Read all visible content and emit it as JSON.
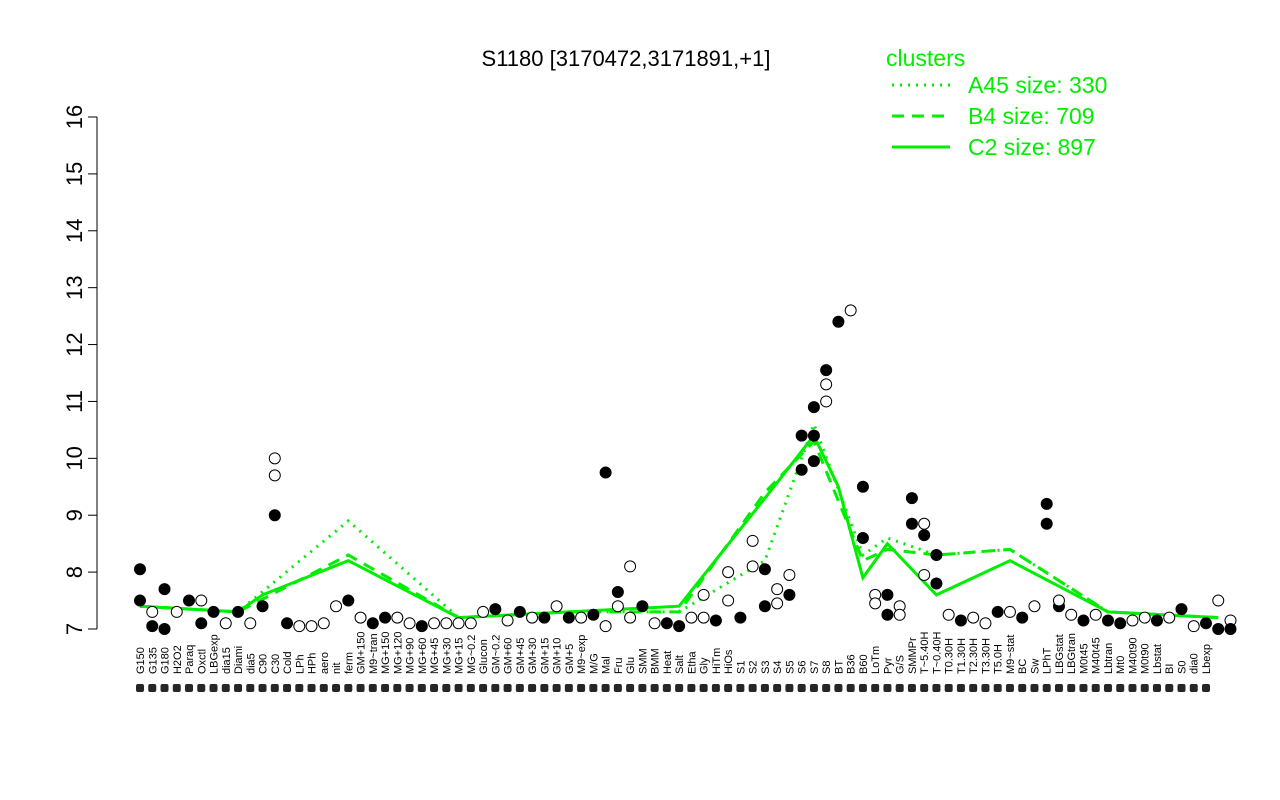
{
  "chart_data": {
    "type": "line",
    "title": "S1180 [3170472,3171891,+1]",
    "xlabel": "",
    "ylabel": "",
    "ylim": [
      7,
      16
    ],
    "yticks": [
      7,
      8,
      9,
      10,
      11,
      12,
      13,
      14,
      15,
      16
    ],
    "x_tick_labels": [
      "G150",
      "G135",
      "G180",
      "H2O2",
      "Paraq",
      "Oxctl",
      "LBGexp",
      "dia15",
      "Diami",
      "dia5",
      "C90",
      "C30",
      "Cold",
      "LPh",
      "HPh",
      "aero",
      "nit",
      "ferm",
      "GM+150",
      "M9~tran",
      "MG+150",
      "MG+120",
      "MG+90",
      "MG+60",
      "MG+45",
      "MG+30",
      "MG+15",
      "MG~0.2",
      "Glucon",
      "GM~0.2",
      "GM+60",
      "GM+45",
      "GM+30",
      "GM+15",
      "GM+10",
      "GM+5",
      "M9~exp",
      "M/G",
      "Mal",
      "Fru",
      "Glu",
      "SMM",
      "BMM",
      "Heat",
      "Salt",
      "Etha",
      "Gly",
      "HiTm",
      "HiOs",
      "S1",
      "S2",
      "S3",
      "S4",
      "S5",
      "S6",
      "S7",
      "S8",
      "BT",
      "B36",
      "B60",
      "LoTm",
      "Pyr",
      "G/S",
      "SMMPr",
      "T~5.40H",
      "T~0.40H",
      "T0.30H",
      "T1.30H",
      "T2.30H",
      "T3.30H",
      "T5.0H",
      "M9~stat",
      "BC",
      "Sw",
      "LPhT",
      "LBGstat",
      "LBGtran",
      "M0t45",
      "M40t45",
      "Lbtran",
      "Mt0",
      "M40t90",
      "M0t90",
      "Lbstat",
      "BI",
      "S0",
      "dia0",
      "Lbexp"
    ],
    "series": [
      {
        "name": "A45 size: 330",
        "style": "dotted",
        "x": [
          1,
          9,
          18,
          27,
          36,
          45,
          52,
          56,
          60,
          62,
          66,
          72,
          80,
          89
        ],
        "y": [
          7.4,
          7.3,
          8.9,
          7.2,
          7.3,
          7.3,
          8.2,
          10.6,
          8.3,
          8.6,
          8.3,
          8.4,
          7.3,
          7.2
        ]
      },
      {
        "name": "B4 size: 709",
        "style": "dashed",
        "x": [
          1,
          9,
          18,
          27,
          36,
          45,
          52,
          56,
          60,
          62,
          66,
          72,
          80,
          89
        ],
        "y": [
          7.4,
          7.3,
          8.3,
          7.2,
          7.3,
          7.3,
          9.4,
          10.3,
          8.2,
          8.4,
          8.3,
          8.4,
          7.3,
          7.2
        ]
      },
      {
        "name": "C2 size: 897",
        "style": "solid",
        "x": [
          1,
          9,
          11,
          18,
          27,
          36,
          45,
          52,
          56,
          58,
          60,
          62,
          66,
          72,
          80,
          89
        ],
        "y": [
          7.4,
          7.3,
          7.6,
          8.2,
          7.2,
          7.3,
          7.4,
          9.3,
          10.4,
          9.5,
          7.9,
          8.5,
          7.6,
          8.2,
          7.3,
          7.2
        ]
      }
    ],
    "points": [
      {
        "x": 1,
        "y": 7.5,
        "filled": true
      },
      {
        "x": 1,
        "y": 8.05,
        "filled": true
      },
      {
        "x": 2,
        "y": 7.3,
        "filled": false
      },
      {
        "x": 2,
        "y": 7.05,
        "filled": true
      },
      {
        "x": 3,
        "y": 7.7,
        "filled": true
      },
      {
        "x": 3,
        "y": 7.0,
        "filled": true
      },
      {
        "x": 4,
        "y": 7.3,
        "filled": false
      },
      {
        "x": 5,
        "y": 7.5,
        "filled": true
      },
      {
        "x": 6,
        "y": 7.5,
        "filled": false
      },
      {
        "x": 6,
        "y": 7.1,
        "filled": true
      },
      {
        "x": 7,
        "y": 7.3,
        "filled": true
      },
      {
        "x": 8,
        "y": 7.1,
        "filled": false
      },
      {
        "x": 9,
        "y": 7.3,
        "filled": true
      },
      {
        "x": 10,
        "y": 7.1,
        "filled": false
      },
      {
        "x": 11,
        "y": 7.4,
        "filled": true
      },
      {
        "x": 12,
        "y": 9.0,
        "filled": true
      },
      {
        "x": 12,
        "y": 9.7,
        "filled": false
      },
      {
        "x": 12,
        "y": 10.0,
        "filled": false
      },
      {
        "x": 13,
        "y": 7.1,
        "filled": true
      },
      {
        "x": 14,
        "y": 7.05,
        "filled": false
      },
      {
        "x": 15,
        "y": 7.05,
        "filled": false
      },
      {
        "x": 16,
        "y": 7.1,
        "filled": false
      },
      {
        "x": 17,
        "y": 7.4,
        "filled": false
      },
      {
        "x": 18,
        "y": 7.5,
        "filled": true
      },
      {
        "x": 19,
        "y": 7.2,
        "filled": false
      },
      {
        "x": 20,
        "y": 7.1,
        "filled": true
      },
      {
        "x": 21,
        "y": 7.2,
        "filled": true
      },
      {
        "x": 22,
        "y": 7.2,
        "filled": false
      },
      {
        "x": 23,
        "y": 7.1,
        "filled": false
      },
      {
        "x": 24,
        "y": 7.05,
        "filled": true
      },
      {
        "x": 25,
        "y": 7.1,
        "filled": false
      },
      {
        "x": 26,
        "y": 7.1,
        "filled": false
      },
      {
        "x": 27,
        "y": 7.1,
        "filled": false
      },
      {
        "x": 28,
        "y": 7.1,
        "filled": false
      },
      {
        "x": 29,
        "y": 7.3,
        "filled": false
      },
      {
        "x": 30,
        "y": 7.35,
        "filled": true
      },
      {
        "x": 31,
        "y": 7.15,
        "filled": false
      },
      {
        "x": 32,
        "y": 7.3,
        "filled": true
      },
      {
        "x": 33,
        "y": 7.2,
        "filled": false
      },
      {
        "x": 34,
        "y": 7.2,
        "filled": true
      },
      {
        "x": 35,
        "y": 7.4,
        "filled": false
      },
      {
        "x": 36,
        "y": 7.2,
        "filled": true
      },
      {
        "x": 37,
        "y": 7.2,
        "filled": false
      },
      {
        "x": 38,
        "y": 7.25,
        "filled": true
      },
      {
        "x": 39,
        "y": 9.75,
        "filled": true
      },
      {
        "x": 39,
        "y": 7.05,
        "filled": false
      },
      {
        "x": 40,
        "y": 7.4,
        "filled": false
      },
      {
        "x": 40,
        "y": 7.65,
        "filled": true
      },
      {
        "x": 41,
        "y": 8.1,
        "filled": false
      },
      {
        "x": 41,
        "y": 7.2,
        "filled": false
      },
      {
        "x": 42,
        "y": 7.4,
        "filled": true
      },
      {
        "x": 43,
        "y": 7.1,
        "filled": false
      },
      {
        "x": 44,
        "y": 7.1,
        "filled": true
      },
      {
        "x": 45,
        "y": 7.05,
        "filled": true
      },
      {
        "x": 46,
        "y": 7.2,
        "filled": false
      },
      {
        "x": 47,
        "y": 7.6,
        "filled": false
      },
      {
        "x": 47,
        "y": 7.2,
        "filled": false
      },
      {
        "x": 48,
        "y": 7.15,
        "filled": true
      },
      {
        "x": 49,
        "y": 8.0,
        "filled": false
      },
      {
        "x": 49,
        "y": 7.5,
        "filled": false
      },
      {
        "x": 50,
        "y": 7.2,
        "filled": true
      },
      {
        "x": 51,
        "y": 8.55,
        "filled": false
      },
      {
        "x": 51,
        "y": 8.1,
        "filled": false
      },
      {
        "x": 52,
        "y": 8.05,
        "filled": true
      },
      {
        "x": 52,
        "y": 7.4,
        "filled": true
      },
      {
        "x": 53,
        "y": 7.7,
        "filled": false
      },
      {
        "x": 53,
        "y": 7.45,
        "filled": false
      },
      {
        "x": 54,
        "y": 7.95,
        "filled": false
      },
      {
        "x": 54,
        "y": 7.6,
        "filled": true
      },
      {
        "x": 55,
        "y": 9.8,
        "filled": true
      },
      {
        "x": 55,
        "y": 10.4,
        "filled": true
      },
      {
        "x": 56,
        "y": 10.9,
        "filled": true
      },
      {
        "x": 56,
        "y": 10.4,
        "filled": true
      },
      {
        "x": 56,
        "y": 9.95,
        "filled": true
      },
      {
        "x": 57,
        "y": 11.0,
        "filled": false
      },
      {
        "x": 57,
        "y": 11.3,
        "filled": false
      },
      {
        "x": 57,
        "y": 11.55,
        "filled": true
      },
      {
        "x": 58,
        "y": 12.4,
        "filled": true
      },
      {
        "x": 59,
        "y": 12.6,
        "filled": false
      },
      {
        "x": 60,
        "y": 9.5,
        "filled": true
      },
      {
        "x": 60,
        "y": 8.6,
        "filled": true
      },
      {
        "x": 61,
        "y": 7.6,
        "filled": false
      },
      {
        "x": 61,
        "y": 7.45,
        "filled": false
      },
      {
        "x": 62,
        "y": 7.6,
        "filled": true
      },
      {
        "x": 62,
        "y": 7.25,
        "filled": true
      },
      {
        "x": 63,
        "y": 7.4,
        "filled": false
      },
      {
        "x": 63,
        "y": 7.25,
        "filled": false
      },
      {
        "x": 64,
        "y": 8.85,
        "filled": true
      },
      {
        "x": 64,
        "y": 9.3,
        "filled": true
      },
      {
        "x": 65,
        "y": 8.65,
        "filled": true
      },
      {
        "x": 65,
        "y": 8.85,
        "filled": false
      },
      {
        "x": 65,
        "y": 7.95,
        "filled": false
      },
      {
        "x": 66,
        "y": 8.3,
        "filled": true
      },
      {
        "x": 66,
        "y": 7.8,
        "filled": true
      },
      {
        "x": 67,
        "y": 7.25,
        "filled": false
      },
      {
        "x": 68,
        "y": 7.15,
        "filled": true
      },
      {
        "x": 69,
        "y": 7.2,
        "filled": false
      },
      {
        "x": 70,
        "y": 7.1,
        "filled": false
      },
      {
        "x": 71,
        "y": 7.3,
        "filled": true
      },
      {
        "x": 72,
        "y": 7.3,
        "filled": false
      },
      {
        "x": 73,
        "y": 7.2,
        "filled": true
      },
      {
        "x": 74,
        "y": 7.4,
        "filled": false
      },
      {
        "x": 75,
        "y": 9.2,
        "filled": true
      },
      {
        "x": 75,
        "y": 8.85,
        "filled": true
      },
      {
        "x": 76,
        "y": 7.4,
        "filled": true
      },
      {
        "x": 76,
        "y": 7.5,
        "filled": false
      },
      {
        "x": 77,
        "y": 7.25,
        "filled": false
      },
      {
        "x": 78,
        "y": 7.15,
        "filled": true
      },
      {
        "x": 79,
        "y": 7.25,
        "filled": false
      },
      {
        "x": 80,
        "y": 7.15,
        "filled": true
      },
      {
        "x": 81,
        "y": 7.1,
        "filled": true
      },
      {
        "x": 82,
        "y": 7.15,
        "filled": false
      },
      {
        "x": 83,
        "y": 7.2,
        "filled": false
      },
      {
        "x": 84,
        "y": 7.15,
        "filled": true
      },
      {
        "x": 85,
        "y": 7.2,
        "filled": false
      },
      {
        "x": 86,
        "y": 7.35,
        "filled": true
      },
      {
        "x": 87,
        "y": 7.05,
        "filled": false
      },
      {
        "x": 88,
        "y": 7.1,
        "filled": true
      },
      {
        "x": 89,
        "y": 7.5,
        "filled": false
      },
      {
        "x": 89,
        "y": 7.0,
        "filled": true
      },
      {
        "x": 90,
        "y": 7.15,
        "filled": false
      },
      {
        "x": 90,
        "y": 7.0,
        "filled": true
      }
    ],
    "legend": {
      "title": "clusters",
      "placement": "top-right",
      "entries": [
        "A45 size: 330",
        "B4 size: 709",
        "C2 size: 897"
      ]
    },
    "colors": {
      "series": "#00ee00",
      "points": "#000000",
      "axes": "#000000"
    },
    "grid": false
  }
}
